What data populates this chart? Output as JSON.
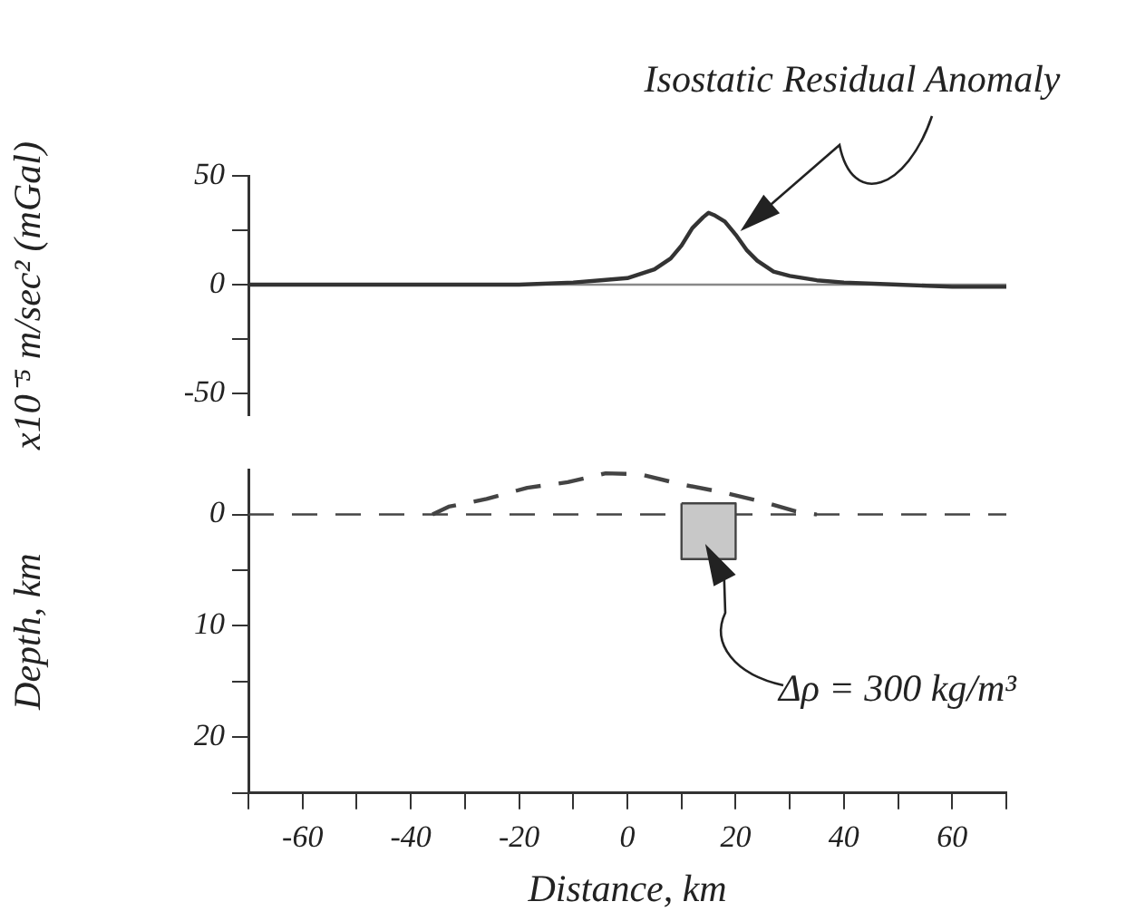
{
  "chart_data": [
    {
      "type": "line",
      "ylabel": "x10⁻⁵ m/sec² (mGal)",
      "annotations": [
        "Isostatic Residual Anomaly"
      ],
      "x": [
        -70,
        -50,
        -40,
        -30,
        -20,
        -10,
        -5,
        0,
        5,
        8,
        10,
        12,
        14,
        15,
        16,
        18,
        20,
        22,
        24,
        27,
        30,
        35,
        40,
        50,
        60,
        70
      ],
      "series": [
        {
          "color": "#333333",
          "values": [
            0,
            0,
            0,
            0,
            0,
            1,
            2,
            3,
            7,
            12,
            18,
            26,
            31,
            33,
            32,
            29,
            23,
            16,
            11,
            6,
            4,
            2,
            1,
            0,
            -1,
            -1
          ]
        }
      ],
      "xlim": [
        -70,
        70
      ],
      "ylim": [
        -60,
        50
      ],
      "yticks": [
        {
          "value": -50,
          "label": "-50"
        },
        {
          "value": -25,
          "label": null
        },
        {
          "value": 0,
          "label": "0"
        },
        {
          "value": 25,
          "label": null
        },
        {
          "value": 50,
          "label": "50"
        }
      ],
      "ref_lines": [
        {
          "axis": "y",
          "value": 0,
          "color": "#888888"
        }
      ],
      "tick_labels": "y",
      "grid": false,
      "legend": false,
      "marker": "none"
    },
    {
      "type": "line",
      "xlabel": "Distance, km",
      "ylabel": "Depth, km",
      "annotations": [
        "Δρ = 300 kg/m³"
      ],
      "series": [
        {
          "type": "area",
          "color": "#c8c8c8",
          "x": [
            10,
            20,
            20,
            10,
            10
          ],
          "values": [
            -1,
            -1,
            4,
            4,
            -1
          ]
        },
        {
          "color": "#444444",
          "line_style": "dashed",
          "x": [
            -36,
            -33,
            -26,
            -18.5,
            -11,
            -4,
            2.5,
            10,
            17.5,
            24.5,
            31,
            35
          ],
          "values": [
            0,
            -0.7,
            -1.4,
            -2.4,
            -2.9,
            -3.7,
            -3.6,
            -2.7,
            -2,
            -1.2,
            -0.3,
            0
          ]
        }
      ],
      "xlim": [
        -70,
        70
      ],
      "ylim": [
        25,
        -4
      ],
      "xticks": [
        {
          "value": -70,
          "label": null
        },
        {
          "value": -60,
          "label": "-60"
        },
        {
          "value": -50,
          "label": null
        },
        {
          "value": -40,
          "label": "-40"
        },
        {
          "value": -30,
          "label": null
        },
        {
          "value": -20,
          "label": "-20"
        },
        {
          "value": -10,
          "label": null
        },
        {
          "value": 0,
          "label": "0"
        },
        {
          "value": 10,
          "label": null
        },
        {
          "value": 20,
          "label": "20"
        },
        {
          "value": 30,
          "label": null
        },
        {
          "value": 40,
          "label": "40"
        },
        {
          "value": 50,
          "label": null
        },
        {
          "value": 60,
          "label": "60"
        },
        {
          "value": 70,
          "label": null
        }
      ],
      "yticks": [
        {
          "value": 0,
          "label": "0"
        },
        {
          "value": 5,
          "label": null
        },
        {
          "value": 10,
          "label": "10"
        },
        {
          "value": 15,
          "label": null
        },
        {
          "value": 20,
          "label": "20"
        },
        {
          "value": 25,
          "label": null
        }
      ],
      "ref_lines": [
        {
          "axis": "y",
          "value": 0,
          "color": "#444444",
          "line_style": "dashed"
        }
      ],
      "grid": false,
      "legend": false,
      "marker": "none"
    }
  ]
}
